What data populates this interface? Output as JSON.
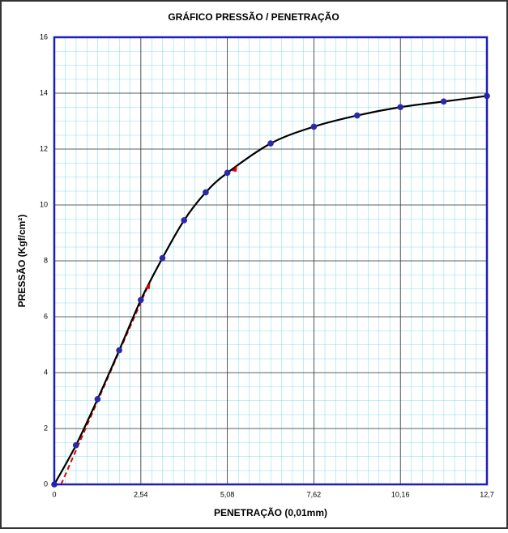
{
  "chart_data": {
    "type": "line",
    "title": "GRÁFICO PRESSÃO / PENETRAÇÃO",
    "xlabel": "PENETRAÇÃO (0,01mm)",
    "ylabel": "PRESSÃO (Kgf/cm²)",
    "x": [
      0,
      0.635,
      1.27,
      1.905,
      2.54,
      3.175,
      3.81,
      4.445,
      5.08,
      6.35,
      7.62,
      8.89,
      10.16,
      11.43,
      12.7
    ],
    "values": [
      0,
      1.4,
      3.05,
      4.8,
      6.6,
      8.1,
      9.45,
      10.45,
      11.15,
      12.2,
      12.8,
      13.2,
      13.5,
      13.7,
      13.9
    ],
    "color": "#000000",
    "marker_color": "#2a2aa8",
    "tangent": {
      "x": [
        0.2,
        2.75
      ],
      "values": [
        0,
        7.1
      ],
      "color": "#e00000"
    },
    "corrected_points": {
      "x": [
        2.75,
        5.3
      ],
      "values": [
        7.1,
        11.3
      ],
      "color": "#e00000"
    },
    "xlim": [
      0,
      12.7
    ],
    "ylim": [
      0,
      16
    ],
    "xticks": [
      0,
      {
        "value": 2.54,
        "label": "2,54"
      },
      {
        "value": 5.08,
        "label": "5,08"
      },
      {
        "value": 7.62,
        "label": "7,62"
      },
      {
        "value": 10.16,
        "label": "10,16"
      },
      {
        "value": 12.7,
        "label": "12,7"
      }
    ],
    "yticks": [
      0,
      2,
      4,
      6,
      8,
      10,
      12,
      14,
      16
    ],
    "grid": true
  }
}
